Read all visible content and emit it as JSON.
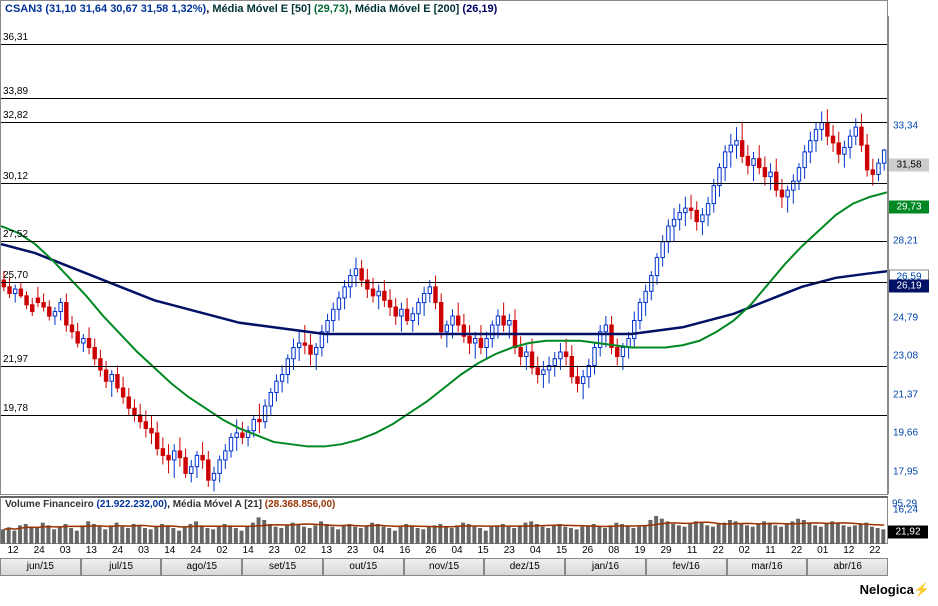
{
  "header": {
    "symbol": "CSAN3",
    "ohlc": "(31,10  31,64  30,67  31,58  1,32%)",
    "ma50_label": "Média Móvel E [50]",
    "ma50_val": "(29,73)",
    "ma200_label": "Média Móvel E [200]",
    "ma200_val": "(26,19)"
  },
  "price": {
    "ymin": 16.24,
    "ymax": 37.5,
    "hlines": [
      {
        "v": 36.31,
        "label": "36,31"
      },
      {
        "v": 33.89,
        "label": "33,89"
      },
      {
        "v": 32.82,
        "label": "32,82"
      },
      {
        "v": 30.12,
        "label": "30,12"
      },
      {
        "v": 27.52,
        "label": "27,52"
      },
      {
        "v": 25.7,
        "label": "25,70"
      },
      {
        "v": 21.97,
        "label": "21,97"
      },
      {
        "v": 19.78,
        "label": "19,78"
      }
    ],
    "yticks": [
      {
        "v": 33.34,
        "label": "33,34"
      },
      {
        "v": 28.21,
        "label": "28,21"
      },
      {
        "v": 24.79,
        "label": "24,79"
      },
      {
        "v": 23.08,
        "label": "23,08"
      },
      {
        "v": 21.37,
        "label": "21,37"
      },
      {
        "v": 19.66,
        "label": "19,66"
      },
      {
        "v": 17.95,
        "label": "17,95"
      },
      {
        "v": 16.24,
        "label": "16,24"
      }
    ],
    "ytags": [
      {
        "v": 31.58,
        "label": "31,58",
        "bg": "#cccccc",
        "fg": "#000000"
      },
      {
        "v": 29.73,
        "label": "29,73",
        "bg": "#008822",
        "fg": "#ffffff"
      },
      {
        "v": 26.59,
        "label": "26,59",
        "bg": "#ffffff",
        "fg": "#0044aa",
        "border": true
      },
      {
        "v": 26.19,
        "label": "26,19",
        "bg": "#001166",
        "fg": "#ffffff"
      }
    ],
    "ma50_color": "#008822",
    "ma200_color": "#001166",
    "ma50": [
      28.2,
      27.9,
      27.4,
      26.7,
      25.9,
      25.1,
      24.2,
      23.4,
      22.6,
      21.9,
      21.2,
      20.6,
      20.1,
      19.6,
      19.2,
      18.9,
      18.6,
      18.5,
      18.4,
      18.4,
      18.5,
      18.7,
      19.0,
      19.4,
      19.9,
      20.4,
      21.0,
      21.6,
      22.1,
      22.5,
      22.8,
      23.0,
      23.1,
      23.1,
      23.1,
      23.0,
      22.9,
      22.8,
      22.8,
      22.8,
      22.9,
      23.1,
      23.5,
      24.0,
      24.7,
      25.6,
      26.5,
      27.3,
      28.0,
      28.7,
      29.2,
      29.5,
      29.7
    ],
    "ma200": [
      27.4,
      27.2,
      27.0,
      26.7,
      26.4,
      26.1,
      25.8,
      25.5,
      25.2,
      24.9,
      24.7,
      24.5,
      24.3,
      24.1,
      23.9,
      23.8,
      23.7,
      23.6,
      23.5,
      23.4,
      23.4,
      23.4,
      23.4,
      23.4,
      23.4,
      23.4,
      23.4,
      23.4,
      23.4,
      23.4,
      23.4,
      23.4,
      23.4,
      23.4,
      23.4,
      23.4,
      23.4,
      23.4,
      23.5,
      23.6,
      23.7,
      23.9,
      24.1,
      24.3,
      24.6,
      24.9,
      25.2,
      25.5,
      25.7,
      25.9,
      26.0,
      26.1,
      26.19
    ],
    "candles": [
      [
        25.8,
        26.2,
        25.3,
        25.5
      ],
      [
        25.5,
        25.9,
        25.0,
        25.2
      ],
      [
        25.2,
        25.6,
        24.8,
        25.4
      ],
      [
        25.4,
        25.7,
        25.0,
        25.1
      ],
      [
        25.1,
        25.3,
        24.5,
        24.7
      ],
      [
        24.7,
        25.0,
        24.2,
        24.4
      ],
      [
        25.0,
        25.5,
        24.6,
        24.8
      ],
      [
        24.8,
        25.2,
        24.4,
        24.6
      ],
      [
        24.6,
        24.9,
        24.0,
        24.2
      ],
      [
        24.2,
        24.6,
        23.8,
        24.4
      ],
      [
        24.4,
        25.0,
        24.0,
        24.8
      ],
      [
        24.8,
        25.2,
        23.5,
        23.8
      ],
      [
        23.8,
        24.2,
        23.2,
        23.5
      ],
      [
        23.5,
        23.9,
        22.8,
        23.0
      ],
      [
        23.0,
        23.4,
        22.6,
        23.2
      ],
      [
        23.2,
        23.7,
        22.5,
        22.8
      ],
      [
        22.8,
        23.2,
        22.0,
        22.3
      ],
      [
        22.3,
        22.7,
        21.5,
        21.8
      ],
      [
        21.8,
        22.2,
        21.0,
        21.3
      ],
      [
        21.3,
        21.8,
        20.6,
        21.6
      ],
      [
        21.6,
        22.0,
        20.8,
        21.0
      ],
      [
        21.0,
        21.5,
        20.3,
        20.6
      ],
      [
        20.6,
        21.0,
        19.8,
        20.1
      ],
      [
        20.1,
        20.5,
        19.5,
        19.8
      ],
      [
        19.8,
        20.3,
        19.2,
        19.5
      ],
      [
        19.5,
        20.0,
        18.8,
        19.2
      ],
      [
        19.2,
        19.8,
        18.5,
        19.0
      ],
      [
        19.0,
        19.5,
        18.0,
        18.3
      ],
      [
        18.3,
        18.8,
        17.6,
        18.0
      ],
      [
        18.0,
        18.5,
        17.2,
        17.8
      ],
      [
        17.8,
        18.5,
        17.0,
        18.2
      ],
      [
        18.2,
        18.8,
        17.5,
        17.9
      ],
      [
        17.9,
        18.3,
        17.0,
        17.2
      ],
      [
        17.2,
        17.8,
        16.8,
        17.5
      ],
      [
        17.5,
        18.2,
        17.0,
        18.0
      ],
      [
        18.0,
        18.6,
        17.4,
        17.8
      ],
      [
        17.8,
        18.2,
        16.6,
        16.9
      ],
      [
        16.9,
        17.5,
        16.4,
        17.2
      ],
      [
        17.2,
        18.0,
        16.8,
        17.8
      ],
      [
        17.8,
        18.5,
        17.4,
        18.2
      ],
      [
        18.2,
        19.0,
        17.9,
        18.8
      ],
      [
        18.8,
        19.6,
        18.2,
        19.0
      ],
      [
        19.0,
        19.5,
        18.5,
        18.8
      ],
      [
        18.8,
        19.3,
        18.4,
        19.1
      ],
      [
        19.1,
        19.8,
        18.8,
        19.6
      ],
      [
        19.6,
        20.3,
        19.0,
        19.5
      ],
      [
        19.5,
        20.5,
        19.2,
        20.2
      ],
      [
        20.2,
        21.0,
        19.8,
        20.8
      ],
      [
        20.8,
        21.6,
        20.4,
        21.3
      ],
      [
        21.3,
        22.0,
        20.8,
        21.6
      ],
      [
        21.6,
        22.5,
        21.2,
        22.3
      ],
      [
        22.3,
        23.2,
        21.8,
        22.8
      ],
      [
        22.8,
        23.6,
        22.2,
        23.0
      ],
      [
        23.0,
        23.8,
        22.5,
        22.9
      ],
      [
        22.9,
        23.4,
        22.0,
        22.5
      ],
      [
        22.5,
        23.0,
        21.8,
        22.8
      ],
      [
        22.8,
        23.8,
        22.4,
        23.5
      ],
      [
        23.5,
        24.3,
        23.0,
        24.0
      ],
      [
        24.0,
        24.8,
        23.5,
        24.5
      ],
      [
        24.5,
        25.3,
        24.0,
        25.0
      ],
      [
        25.0,
        25.8,
        24.5,
        25.5
      ],
      [
        25.5,
        26.3,
        25.0,
        26.0
      ],
      [
        26.0,
        26.8,
        25.5,
        26.3
      ],
      [
        26.3,
        26.7,
        25.5,
        25.8
      ],
      [
        25.8,
        26.3,
        25.0,
        25.4
      ],
      [
        25.4,
        25.9,
        24.8,
        25.1
      ],
      [
        25.1,
        25.6,
        24.5,
        25.3
      ],
      [
        25.3,
        25.8,
        24.6,
        24.9
      ],
      [
        24.9,
        25.4,
        24.2,
        24.6
      ],
      [
        24.6,
        25.0,
        23.8,
        24.2
      ],
      [
        24.2,
        24.8,
        23.5,
        24.5
      ],
      [
        24.5,
        25.0,
        23.8,
        24.0
      ],
      [
        24.0,
        24.6,
        23.5,
        24.3
      ],
      [
        24.3,
        25.0,
        23.8,
        24.8
      ],
      [
        24.8,
        25.5,
        24.2,
        25.2
      ],
      [
        25.2,
        25.8,
        24.8,
        25.5
      ],
      [
        25.5,
        26.0,
        24.5,
        24.8
      ],
      [
        24.8,
        25.2,
        23.2,
        23.5
      ],
      [
        23.5,
        24.0,
        22.8,
        23.8
      ],
      [
        23.8,
        24.5,
        23.2,
        24.2
      ],
      [
        24.2,
        24.8,
        23.5,
        23.8
      ],
      [
        23.8,
        24.3,
        23.0,
        23.3
      ],
      [
        23.3,
        23.8,
        22.5,
        23.0
      ],
      [
        23.0,
        23.5,
        22.3,
        23.2
      ],
      [
        23.2,
        23.8,
        22.5,
        22.8
      ],
      [
        22.8,
        23.5,
        22.3,
        23.2
      ],
      [
        23.2,
        24.0,
        22.8,
        23.8
      ],
      [
        23.8,
        24.5,
        23.2,
        24.2
      ],
      [
        24.2,
        24.8,
        23.5,
        23.8
      ],
      [
        23.8,
        24.3,
        23.2,
        24.0
      ],
      [
        24.0,
        24.5,
        22.5,
        22.8
      ],
      [
        22.8,
        23.3,
        22.0,
        22.4
      ],
      [
        22.4,
        22.9,
        21.8,
        22.6
      ],
      [
        22.6,
        23.2,
        21.6,
        21.9
      ],
      [
        21.9,
        22.4,
        21.2,
        21.6
      ],
      [
        21.6,
        22.2,
        21.0,
        21.8
      ],
      [
        21.8,
        22.4,
        21.2,
        22.0
      ],
      [
        22.0,
        22.6,
        21.5,
        22.3
      ],
      [
        22.3,
        23.0,
        21.8,
        22.6
      ],
      [
        22.6,
        23.2,
        22.0,
        22.4
      ],
      [
        22.4,
        22.9,
        21.2,
        21.5
      ],
      [
        21.5,
        22.0,
        20.8,
        21.2
      ],
      [
        21.2,
        21.8,
        20.5,
        21.5
      ],
      [
        21.5,
        22.3,
        21.0,
        22.0
      ],
      [
        22.0,
        23.0,
        21.6,
        22.8
      ],
      [
        22.8,
        23.8,
        22.4,
        23.5
      ],
      [
        23.5,
        24.2,
        22.8,
        23.8
      ],
      [
        23.8,
        24.2,
        22.5,
        22.8
      ],
      [
        22.8,
        23.2,
        22.0,
        22.4
      ],
      [
        22.4,
        23.0,
        21.8,
        22.8
      ],
      [
        22.8,
        23.5,
        22.3,
        23.2
      ],
      [
        23.2,
        24.4,
        22.8,
        24.0
      ],
      [
        24.0,
        25.0,
        23.6,
        24.8
      ],
      [
        24.8,
        25.6,
        24.2,
        25.3
      ],
      [
        25.3,
        26.2,
        24.9,
        26.0
      ],
      [
        26.0,
        27.0,
        25.6,
        26.8
      ],
      [
        26.8,
        27.8,
        26.4,
        27.5
      ],
      [
        27.5,
        28.5,
        27.0,
        28.2
      ],
      [
        28.2,
        29.0,
        27.5,
        28.5
      ],
      [
        28.5,
        29.2,
        28.0,
        28.8
      ],
      [
        28.8,
        29.5,
        28.2,
        29.0
      ],
      [
        29.0,
        29.6,
        28.5,
        28.9
      ],
      [
        28.9,
        29.3,
        28.0,
        28.4
      ],
      [
        28.4,
        29.0,
        27.8,
        28.7
      ],
      [
        28.7,
        29.5,
        28.2,
        29.2
      ],
      [
        29.2,
        30.3,
        28.8,
        30.0
      ],
      [
        30.0,
        31.0,
        29.5,
        30.8
      ],
      [
        30.8,
        31.8,
        30.2,
        31.5
      ],
      [
        31.5,
        32.3,
        30.8,
        31.8
      ],
      [
        31.8,
        32.6,
        31.2,
        32.0
      ],
      [
        32.0,
        32.8,
        31.0,
        31.3
      ],
      [
        31.3,
        31.8,
        30.5,
        30.9
      ],
      [
        30.9,
        31.5,
        30.2,
        31.2
      ],
      [
        31.2,
        31.8,
        30.5,
        30.8
      ],
      [
        30.8,
        31.3,
        30.0,
        30.4
      ],
      [
        30.4,
        31.0,
        29.8,
        30.6
      ],
      [
        30.6,
        31.2,
        29.5,
        29.8
      ],
      [
        29.8,
        30.3,
        29.0,
        29.5
      ],
      [
        29.5,
        30.0,
        28.8,
        29.8
      ],
      [
        29.8,
        30.5,
        29.2,
        30.2
      ],
      [
        30.2,
        31.0,
        29.8,
        30.8
      ],
      [
        30.8,
        31.8,
        30.3,
        31.5
      ],
      [
        31.5,
        32.4,
        31.0,
        32.0
      ],
      [
        32.0,
        32.8,
        31.5,
        32.5
      ],
      [
        32.5,
        33.3,
        32.0,
        32.8
      ],
      [
        32.8,
        33.4,
        31.8,
        32.2
      ],
      [
        32.2,
        32.7,
        31.5,
        31.9
      ],
      [
        31.9,
        32.4,
        31.0,
        31.4
      ],
      [
        31.4,
        32.0,
        30.8,
        31.7
      ],
      [
        31.7,
        32.5,
        31.2,
        32.2
      ],
      [
        32.2,
        33.0,
        31.8,
        32.6
      ],
      [
        32.6,
        33.2,
        31.5,
        31.8
      ],
      [
        31.8,
        32.3,
        30.4,
        30.7
      ],
      [
        30.7,
        31.2,
        30.0,
        30.5
      ],
      [
        30.5,
        31.2,
        30.2,
        31.0
      ],
      [
        31.0,
        31.64,
        30.67,
        31.58
      ]
    ]
  },
  "volume": {
    "label1": "Volume Financeiro",
    "val1": "(21.922.232,00)",
    "label2": "Média Móvel A [21]",
    "val2": "(28.368.856,00)",
    "ytick": "95,29",
    "ytag": {
      "v": "21,92",
      "bg": "#000000"
    },
    "bars": [
      22,
      25,
      20,
      28,
      30,
      26,
      24,
      32,
      28,
      22,
      26,
      30,
      24,
      20,
      28,
      34,
      30,
      26,
      22,
      28,
      32,
      26,
      24,
      30,
      28,
      24,
      22,
      26,
      30,
      28,
      24,
      20,
      26,
      30,
      34,
      28,
      24,
      22,
      26,
      30,
      28,
      24,
      20,
      26,
      32,
      40,
      36,
      30,
      26,
      24,
      28,
      32,
      30,
      26,
      24,
      28,
      34,
      30,
      26,
      22,
      28,
      30,
      26,
      24,
      28,
      32,
      30,
      26,
      24,
      20,
      26,
      30,
      28,
      24,
      22,
      26,
      28,
      30,
      26,
      24,
      28,
      32,
      30,
      26,
      24,
      20,
      26,
      28,
      30,
      26,
      24,
      28,
      32,
      34,
      30,
      26,
      24,
      28,
      30,
      26,
      24,
      22,
      26,
      28,
      30,
      26,
      24,
      28,
      32,
      30,
      28,
      24,
      26,
      28,
      36,
      42,
      38,
      34,
      30,
      28,
      26,
      30,
      34,
      32,
      28,
      26,
      30,
      32,
      36,
      34,
      30,
      28,
      26,
      30,
      34,
      32,
      28,
      26,
      30,
      34,
      38,
      36,
      32,
      28,
      26,
      30,
      34,
      32,
      28,
      26,
      28,
      30,
      32,
      26,
      24,
      22
    ],
    "ma_color": "#993300"
  },
  "xaxis": {
    "ticks": [
      "12",
      "24",
      "03",
      "13",
      "24",
      "03",
      "14",
      "24",
      "02",
      "14",
      "23",
      "02",
      "13",
      "23",
      "04",
      "16",
      "26",
      "04",
      "15",
      "23",
      "04",
      "15",
      "26",
      "08",
      "19",
      "29",
      "11",
      "22",
      "02",
      "11",
      "22",
      "01",
      "12",
      "22"
    ],
    "months": [
      "jun/15",
      "jul/15",
      "ago/15",
      "set/15",
      "out/15",
      "nov/15",
      "dez/15",
      "jan/16",
      "fev/16",
      "mar/16",
      "abr/16"
    ]
  },
  "logo": {
    "text": "Nelogica",
    "bolt": "⚡"
  }
}
